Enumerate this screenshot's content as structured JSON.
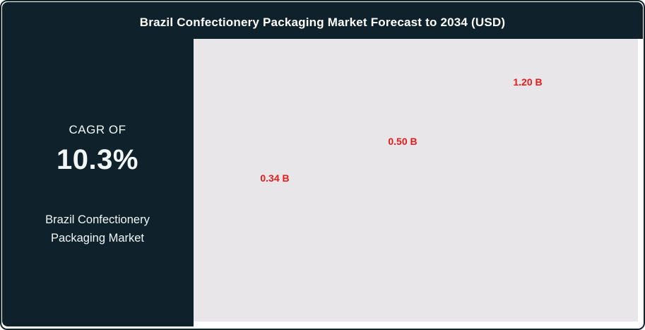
{
  "title": "Brazil Confectionery Packaging Market Forecast to 2034 (USD)",
  "sidebar": {
    "cagr_label": "CAGR OF",
    "cagr_value": "10.3%",
    "market_name_line1": "Brazil Confectionery",
    "market_name_line2": "Packaging Market"
  },
  "chart_data": {
    "type": "bar",
    "title": "Brazil Confectionery Packaging Market Forecast to 2034 (USD)",
    "unit": "USD billions",
    "values": [
      0.34,
      0.5,
      1.2
    ],
    "data_labels": [
      "0.34 B",
      "0.50 B",
      "1.20 B"
    ],
    "bars_rendered": false,
    "axes_visible": false,
    "grid": false,
    "legend": "none",
    "plot_background": "#e8e6e8",
    "label_color": "#e81a1a"
  },
  "colors": {
    "panel": "#0f222c",
    "border": "#14242e",
    "plot": "#e8e6e8",
    "accent": "#e81a1a",
    "text": "#f2f6f7"
  }
}
